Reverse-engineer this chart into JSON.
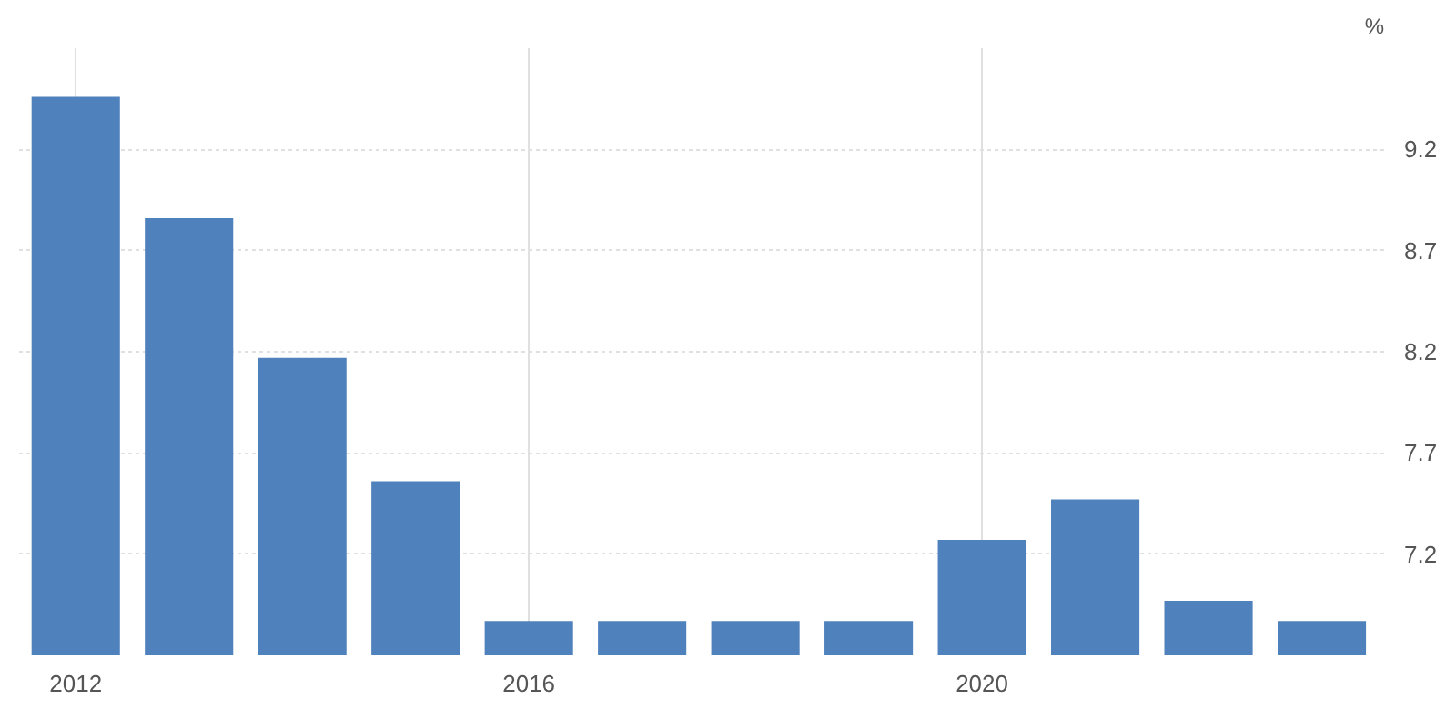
{
  "chart_data": {
    "type": "bar",
    "ylabel": "%",
    "x": [
      2012,
      2013,
      2014,
      2015,
      2016,
      2017,
      2018,
      2019,
      2020,
      2021,
      2022,
      2023
    ],
    "values": [
      9.46,
      8.86,
      8.17,
      7.56,
      6.87,
      6.87,
      6.87,
      6.87,
      7.27,
      7.47,
      6.97,
      6.87
    ],
    "color": "#4f81bd",
    "xlim": [
      2011.5,
      2023.55
    ],
    "xticks": [
      2012,
      2016,
      2020
    ],
    "ylim": [
      6.7,
      9.7
    ],
    "yticks": [
      7.2,
      7.7,
      8.2,
      8.7,
      9.2
    ],
    "grid": true
  }
}
